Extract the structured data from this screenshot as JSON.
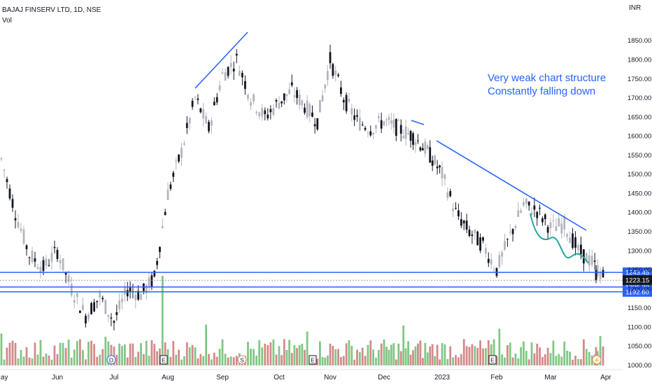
{
  "header": {
    "symbol": "BAJAJ FINSERV LTD, 1D, NSE",
    "volume_label": "Vol",
    "currency": "INR"
  },
  "annotation": {
    "line1": "Very weak chart structure",
    "line2": "Constantly falling down"
  },
  "colors": {
    "up": "#26a69a",
    "down": "#131722",
    "vol_up": "#81c784",
    "vol_down": "#d48a8a",
    "trendline": "#2962ff",
    "curve": "#26a69a",
    "hline": "#2962ff",
    "last_price_bg": "#131722"
  },
  "chart_data": {
    "type": "candlestick",
    "y_axis": {
      "ylim": [
        1000,
        1920
      ],
      "ticks": [
        1000,
        1050,
        1100,
        1150,
        1200,
        1250,
        1300,
        1350,
        1400,
        1450,
        1500,
        1550,
        1600,
        1650,
        1700,
        1750,
        1800,
        1850
      ]
    },
    "x_axis": {
      "tick_labels": [
        "May",
        "Jun",
        "Jul",
        "Aug",
        "Sep",
        "Oct",
        "Nov",
        "Dec",
        "2023",
        "Feb",
        "Mar",
        "Apr"
      ]
    },
    "price_levels": [
      {
        "label": "1243.45",
        "value": 1243.45
      },
      {
        "label": "1205.30",
        "value": 1205.3
      },
      {
        "label": "1192.60",
        "value": 1192.6
      }
    ],
    "last_price": {
      "label": "1223.15",
      "value": 1223.15
    },
    "event_markers": [
      {
        "label": "D",
        "month": "Jul"
      },
      {
        "label": "E",
        "month": "Aug"
      },
      {
        "label": "S",
        "month": "Sep"
      },
      {
        "label": "E",
        "month": "Nov"
      },
      {
        "label": "E",
        "month": "Feb"
      },
      {
        "label": "⚡",
        "month": "Apr"
      }
    ],
    "price_path": [
      [
        "May",
        1540
      ],
      [
        "May",
        1400
      ],
      [
        "May",
        1290
      ],
      [
        "May",
        1255
      ],
      [
        "Jun",
        1300
      ],
      [
        "Jun",
        1200
      ],
      [
        "Jun",
        1130
      ],
      [
        "Jun",
        1180
      ],
      [
        "Jul",
        1115
      ],
      [
        "Jul",
        1200
      ],
      [
        "Jul",
        1185
      ],
      [
        "Jul",
        1230
      ],
      [
        "Aug",
        1450
      ],
      [
        "Aug",
        1560
      ],
      [
        "Aug",
        1700
      ],
      [
        "Aug",
        1620
      ],
      [
        "Sep",
        1760
      ],
      [
        "Sep",
        1800
      ],
      [
        "Sep",
        1700
      ],
      [
        "Sep",
        1650
      ],
      [
        "Oct",
        1690
      ],
      [
        "Oct",
        1720
      ],
      [
        "Oct",
        1680
      ],
      [
        "Oct",
        1640
      ],
      [
        "Nov",
        1800
      ],
      [
        "Nov",
        1700
      ],
      [
        "Nov",
        1640
      ],
      [
        "Nov",
        1620
      ],
      [
        "Dec",
        1640
      ],
      [
        "Dec",
        1620
      ],
      [
        "Dec",
        1600
      ],
      [
        "Dec",
        1560
      ],
      [
        "2023",
        1500
      ],
      [
        "2023",
        1400
      ],
      [
        "2023",
        1350
      ],
      [
        "2023",
        1315
      ],
      [
        "Feb",
        1250
      ],
      [
        "Feb",
        1340
      ],
      [
        "Feb",
        1420
      ],
      [
        "Feb",
        1405
      ],
      [
        "Mar",
        1360
      ],
      [
        "Mar",
        1370
      ],
      [
        "Mar",
        1300
      ],
      [
        "Mar",
        1270
      ],
      [
        "Apr",
        1223
      ]
    ],
    "volume_spikes": [
      {
        "month": "Aug",
        "value": 1
      }
    ],
    "trendlines": [
      {
        "from": [
          "Aug",
          1710
        ],
        "to": [
          "Sep",
          1855
        ]
      },
      {
        "from": [
          "2023",
          1575
        ],
        "to": [
          "Mar",
          1345
        ]
      },
      {
        "from": [
          "Dec",
          1610
        ],
        "to": [
          "Dec",
          1625
        ]
      }
    ]
  }
}
